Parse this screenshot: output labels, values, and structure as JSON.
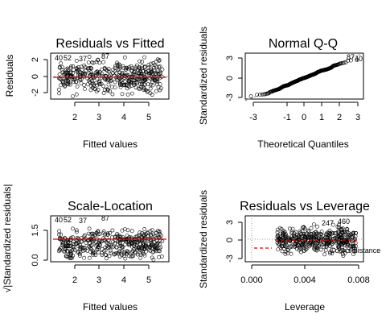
{
  "chart_data": [
    {
      "type": "scatter",
      "title": "Residuals vs Fitted",
      "xlabel": "Fitted values",
      "ylabel": "Residuals",
      "xlim": [
        1.2,
        5.8
      ],
      "ylim": [
        -2.8,
        3.1
      ],
      "xticks": [
        "2",
        "3",
        "4",
        "5"
      ],
      "yticks": [
        "-2",
        "0",
        "2"
      ],
      "point_annotations": [
        "40",
        "52",
        "37",
        "87"
      ],
      "smoother": "red horizontal line near 0",
      "points_description": "approx. 500 residuals spread evenly between -2.5 and 2.5 across fitted values 1.3-5.6"
    },
    {
      "type": "scatter",
      "title": "Normal Q-Q",
      "xlabel": "Theoretical Quantiles",
      "ylabel": "Standardized residuals",
      "xlim": [
        -3.3,
        3.3
      ],
      "ylim": [
        -3.1,
        3.2
      ],
      "xticks": [
        "-3",
        "-1",
        "0",
        "1",
        "2",
        "3"
      ],
      "yticks": [
        "-3",
        "0",
        "3"
      ],
      "point_annotations": [
        "87",
        "40"
      ],
      "reference_line": "dotted line y = x"
    },
    {
      "type": "scatter",
      "title": "Scale-Location",
      "xlabel": "Fitted values",
      "ylabel": "√|Standardized residuals|",
      "xlim": [
        1.2,
        5.8
      ],
      "ylim": [
        -0.1,
        1.85
      ],
      "xticks": [
        "2",
        "3",
        "4",
        "5"
      ],
      "yticks": [
        "0.0",
        "1.5"
      ],
      "point_annotations": [
        "40",
        "52",
        "37",
        "87"
      ],
      "smoother": "red line near 0.8"
    },
    {
      "type": "scatter",
      "title": "Residuals vs Leverage",
      "xlabel": "Leverage",
      "ylabel": "Standardized residuals",
      "xlim": [
        -0.0003,
        0.0083
      ],
      "ylim": [
        -3.3,
        3.7
      ],
      "xticks": [
        "0.000",
        "0.004",
        "0.008"
      ],
      "yticks": [
        "-3",
        "0",
        "3"
      ],
      "point_annotations": [
        "247",
        "460"
      ],
      "legend": "Cook's distance",
      "smoother": "red dashed line near 0"
    }
  ]
}
